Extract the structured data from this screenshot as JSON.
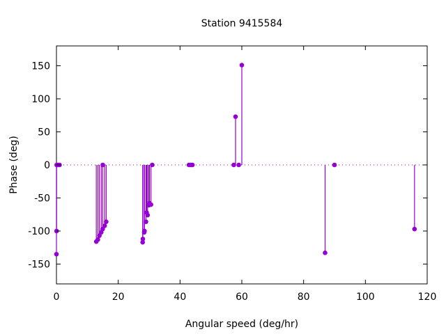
{
  "chart_data": {
    "type": "scatter",
    "style": "impulses-with-points",
    "title": "Station 9415584",
    "xlabel": "Angular speed (deg/hr)",
    "ylabel": "Phase (deg)",
    "xlim": [
      0,
      120
    ],
    "ylim": [
      -180,
      180
    ],
    "xticks": [
      "0",
      "20",
      "40",
      "60",
      "80",
      "100",
      "120"
    ],
    "yticks": [
      "-150",
      "-100",
      "-50",
      "0",
      "50",
      "100",
      "150"
    ],
    "grid": false,
    "baseline": 0,
    "color": "#9400d3",
    "points": [
      {
        "x": 0.0,
        "y": -135
      },
      {
        "x": 0.04,
        "y": -100
      },
      {
        "x": 0.08,
        "y": 0
      },
      {
        "x": 0.5,
        "y": 0
      },
      {
        "x": 1.0,
        "y": 0
      },
      {
        "x": 12.9,
        "y": -116
      },
      {
        "x": 13.4,
        "y": -113
      },
      {
        "x": 13.9,
        "y": -107
      },
      {
        "x": 14.5,
        "y": -102
      },
      {
        "x": 14.96,
        "y": -97
      },
      {
        "x": 15.0,
        "y": 0
      },
      {
        "x": 15.6,
        "y": -92
      },
      {
        "x": 16.1,
        "y": -86
      },
      {
        "x": 27.9,
        "y": -117
      },
      {
        "x": 27.97,
        "y": -112
      },
      {
        "x": 28.4,
        "y": -102
      },
      {
        "x": 28.5,
        "y": -100
      },
      {
        "x": 28.98,
        "y": -86
      },
      {
        "x": 29.2,
        "y": -72
      },
      {
        "x": 29.5,
        "y": -76
      },
      {
        "x": 29.9,
        "y": -61
      },
      {
        "x": 30.1,
        "y": -58
      },
      {
        "x": 30.6,
        "y": -60
      },
      {
        "x": 31.0,
        "y": 0
      },
      {
        "x": 42.9,
        "y": 0
      },
      {
        "x": 43.5,
        "y": 0
      },
      {
        "x": 44.0,
        "y": 0
      },
      {
        "x": 57.4,
        "y": 0
      },
      {
        "x": 57.97,
        "y": 73
      },
      {
        "x": 59.0,
        "y": 0
      },
      {
        "x": 60.0,
        "y": 151
      },
      {
        "x": 86.95,
        "y": -133
      },
      {
        "x": 90.0,
        "y": 0
      },
      {
        "x": 115.9,
        "y": -97
      }
    ]
  }
}
